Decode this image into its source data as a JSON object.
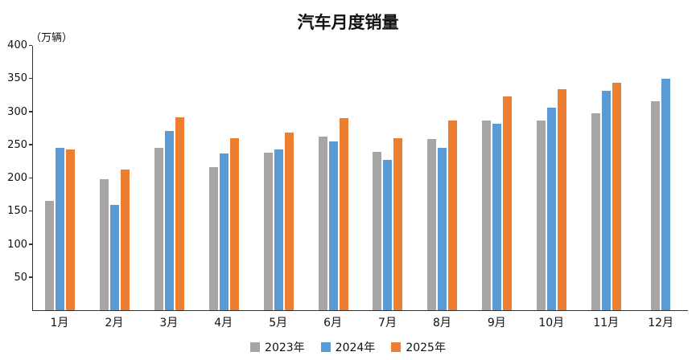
{
  "chart_data": {
    "type": "bar",
    "title": "汽车月度销量",
    "unit_label": "（万辆）",
    "xlabel": "",
    "ylabel": "万辆",
    "ylim": [
      0,
      400
    ],
    "yticks": [
      50,
      100,
      150,
      200,
      250,
      300,
      350,
      400
    ],
    "grid": false,
    "legend_position": "bottom",
    "categories": [
      "1月",
      "2月",
      "3月",
      "4月",
      "5月",
      "6月",
      "7月",
      "8月",
      "9月",
      "10月",
      "11月",
      "12月"
    ],
    "series": [
      {
        "name": "2023年",
        "color": "#A6A6A6",
        "values": [
          165,
          198,
          245,
          216,
          238,
          262,
          239,
          258,
          286,
          286,
          297,
          315
        ]
      },
      {
        "name": "2024年",
        "color": "#5B9BD5",
        "values": [
          245,
          159,
          270,
          236,
          242,
          255,
          227,
          245,
          281,
          305,
          331,
          349
        ]
      },
      {
        "name": "2025年",
        "color": "#ED7D31",
        "values": [
          243,
          212,
          291,
          259,
          268,
          290,
          259,
          286,
          322,
          333,
          343,
          null
        ]
      }
    ]
  }
}
